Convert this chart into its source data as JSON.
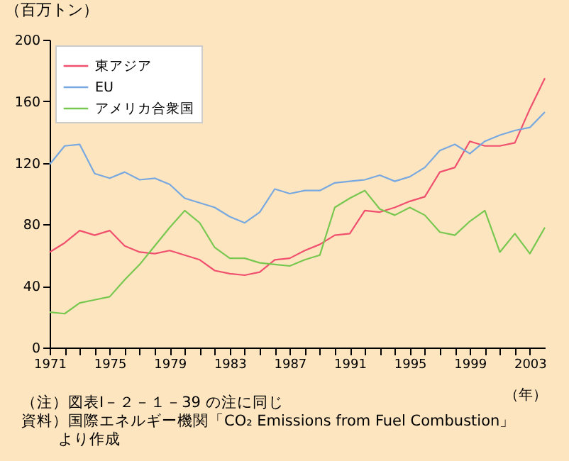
{
  "chart_data": {
    "type": "line",
    "ylabel": "（百万トン）",
    "xlabel": "（年）",
    "x": [
      1971,
      1972,
      1973,
      1974,
      1975,
      1976,
      1977,
      1978,
      1979,
      1980,
      1981,
      1982,
      1983,
      1984,
      1985,
      1986,
      1987,
      1988,
      1989,
      1990,
      1991,
      1992,
      1993,
      1994,
      1995,
      1996,
      1997,
      1998,
      1999,
      2000,
      2001,
      2002,
      2003,
      2004
    ],
    "series": [
      {
        "name": "東アジア",
        "color": "#f0506e",
        "values": [
          62,
          68,
          76,
          73,
          76,
          66,
          62,
          61,
          63,
          60,
          57,
          50,
          48,
          47,
          49,
          57,
          58,
          63,
          67,
          73,
          74,
          89,
          88,
          91,
          95,
          98,
          114,
          117,
          134,
          131,
          131,
          133,
          155,
          175
        ]
      },
      {
        "name": "EU",
        "color": "#78a8e0",
        "values": [
          119,
          131,
          132,
          113,
          110,
          114,
          109,
          110,
          106,
          97,
          94,
          91,
          85,
          81,
          88,
          103,
          100,
          102,
          102,
          107,
          108,
          109,
          112,
          108,
          111,
          117,
          128,
          132,
          126,
          134,
          138,
          141,
          143,
          153
        ]
      },
      {
        "name": "アメリカ合衆国",
        "color": "#78c850",
        "values": [
          23,
          22,
          29,
          31,
          33,
          44,
          54,
          66,
          78,
          89,
          81,
          65,
          58,
          58,
          55,
          54,
          53,
          57,
          60,
          91,
          97,
          102,
          90,
          86,
          91,
          86,
          75,
          73,
          82,
          89,
          62,
          74,
          61,
          78
        ]
      }
    ],
    "xlim": [
      1971,
      2004
    ],
    "xticks": [
      1971,
      {
        "value": 1972,
        "label": null
      },
      {
        "value": 1973,
        "label": null
      },
      {
        "value": 1974,
        "label": null
      },
      1975,
      {
        "value": 1976,
        "label": null
      },
      {
        "value": 1977,
        "label": null
      },
      {
        "value": 1978,
        "label": null
      },
      1979,
      {
        "value": 1980,
        "label": null
      },
      {
        "value": 1981,
        "label": null
      },
      {
        "value": 1982,
        "label": null
      },
      1983,
      {
        "value": 1984,
        "label": null
      },
      {
        "value": 1985,
        "label": null
      },
      {
        "value": 1986,
        "label": null
      },
      1987,
      {
        "value": 1988,
        "label": null
      },
      {
        "value": 1989,
        "label": null
      },
      {
        "value": 1990,
        "label": null
      },
      1991,
      {
        "value": 1992,
        "label": null
      },
      {
        "value": 1993,
        "label": null
      },
      {
        "value": 1994,
        "label": null
      },
      1995,
      {
        "value": 1996,
        "label": null
      },
      {
        "value": 1997,
        "label": null
      },
      {
        "value": 1998,
        "label": null
      },
      1999,
      {
        "value": 2000,
        "label": null
      },
      {
        "value": 2001,
        "label": null
      },
      {
        "value": 2002,
        "label": null
      },
      2003
    ],
    "ylim": [
      0,
      200
    ],
    "yticks": [
      0,
      40,
      80,
      120,
      160,
      200
    ],
    "grid": false,
    "legend": "top left",
    "marker": "none",
    "line_style": "solid",
    "annotations": [
      "（注）図表Ⅰ－２－１－39 の注に同じ",
      "資料）国際エネルギー機関「CO₂ Emissions from Fuel Combustion」",
      "より作成"
    ]
  }
}
